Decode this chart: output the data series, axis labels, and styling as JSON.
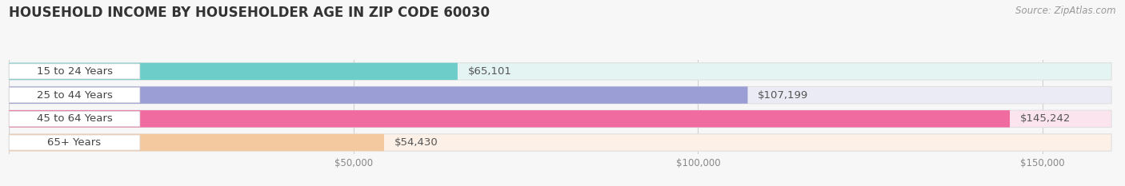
{
  "title": "HOUSEHOLD INCOME BY HOUSEHOLDER AGE IN ZIP CODE 60030",
  "source": "Source: ZipAtlas.com",
  "categories": [
    "15 to 24 Years",
    "25 to 44 Years",
    "45 to 64 Years",
    "65+ Years"
  ],
  "values": [
    65101,
    107199,
    145242,
    54430
  ],
  "labels": [
    "$65,101",
    "$107,199",
    "$145,242",
    "$54,430"
  ],
  "bar_colors": [
    "#6dcdc9",
    "#9b9ed4",
    "#f06ca0",
    "#f5c9a0"
  ],
  "bar_bg_colors": [
    "#e4f4f3",
    "#ebebf6",
    "#fce4ef",
    "#fdf0e6"
  ],
  "xlim": [
    0,
    160000
  ],
  "xticks": [
    0,
    50000,
    100000,
    150000
  ],
  "xticklabels": [
    "",
    "$50,000",
    "$100,000",
    "$150,000"
  ],
  "background_color": "#f7f7f7",
  "bar_height": 0.72,
  "label_fontsize": 9.5,
  "title_fontsize": 12,
  "source_fontsize": 8.5,
  "category_fontsize": 9.5,
  "tick_fontsize": 8.5
}
